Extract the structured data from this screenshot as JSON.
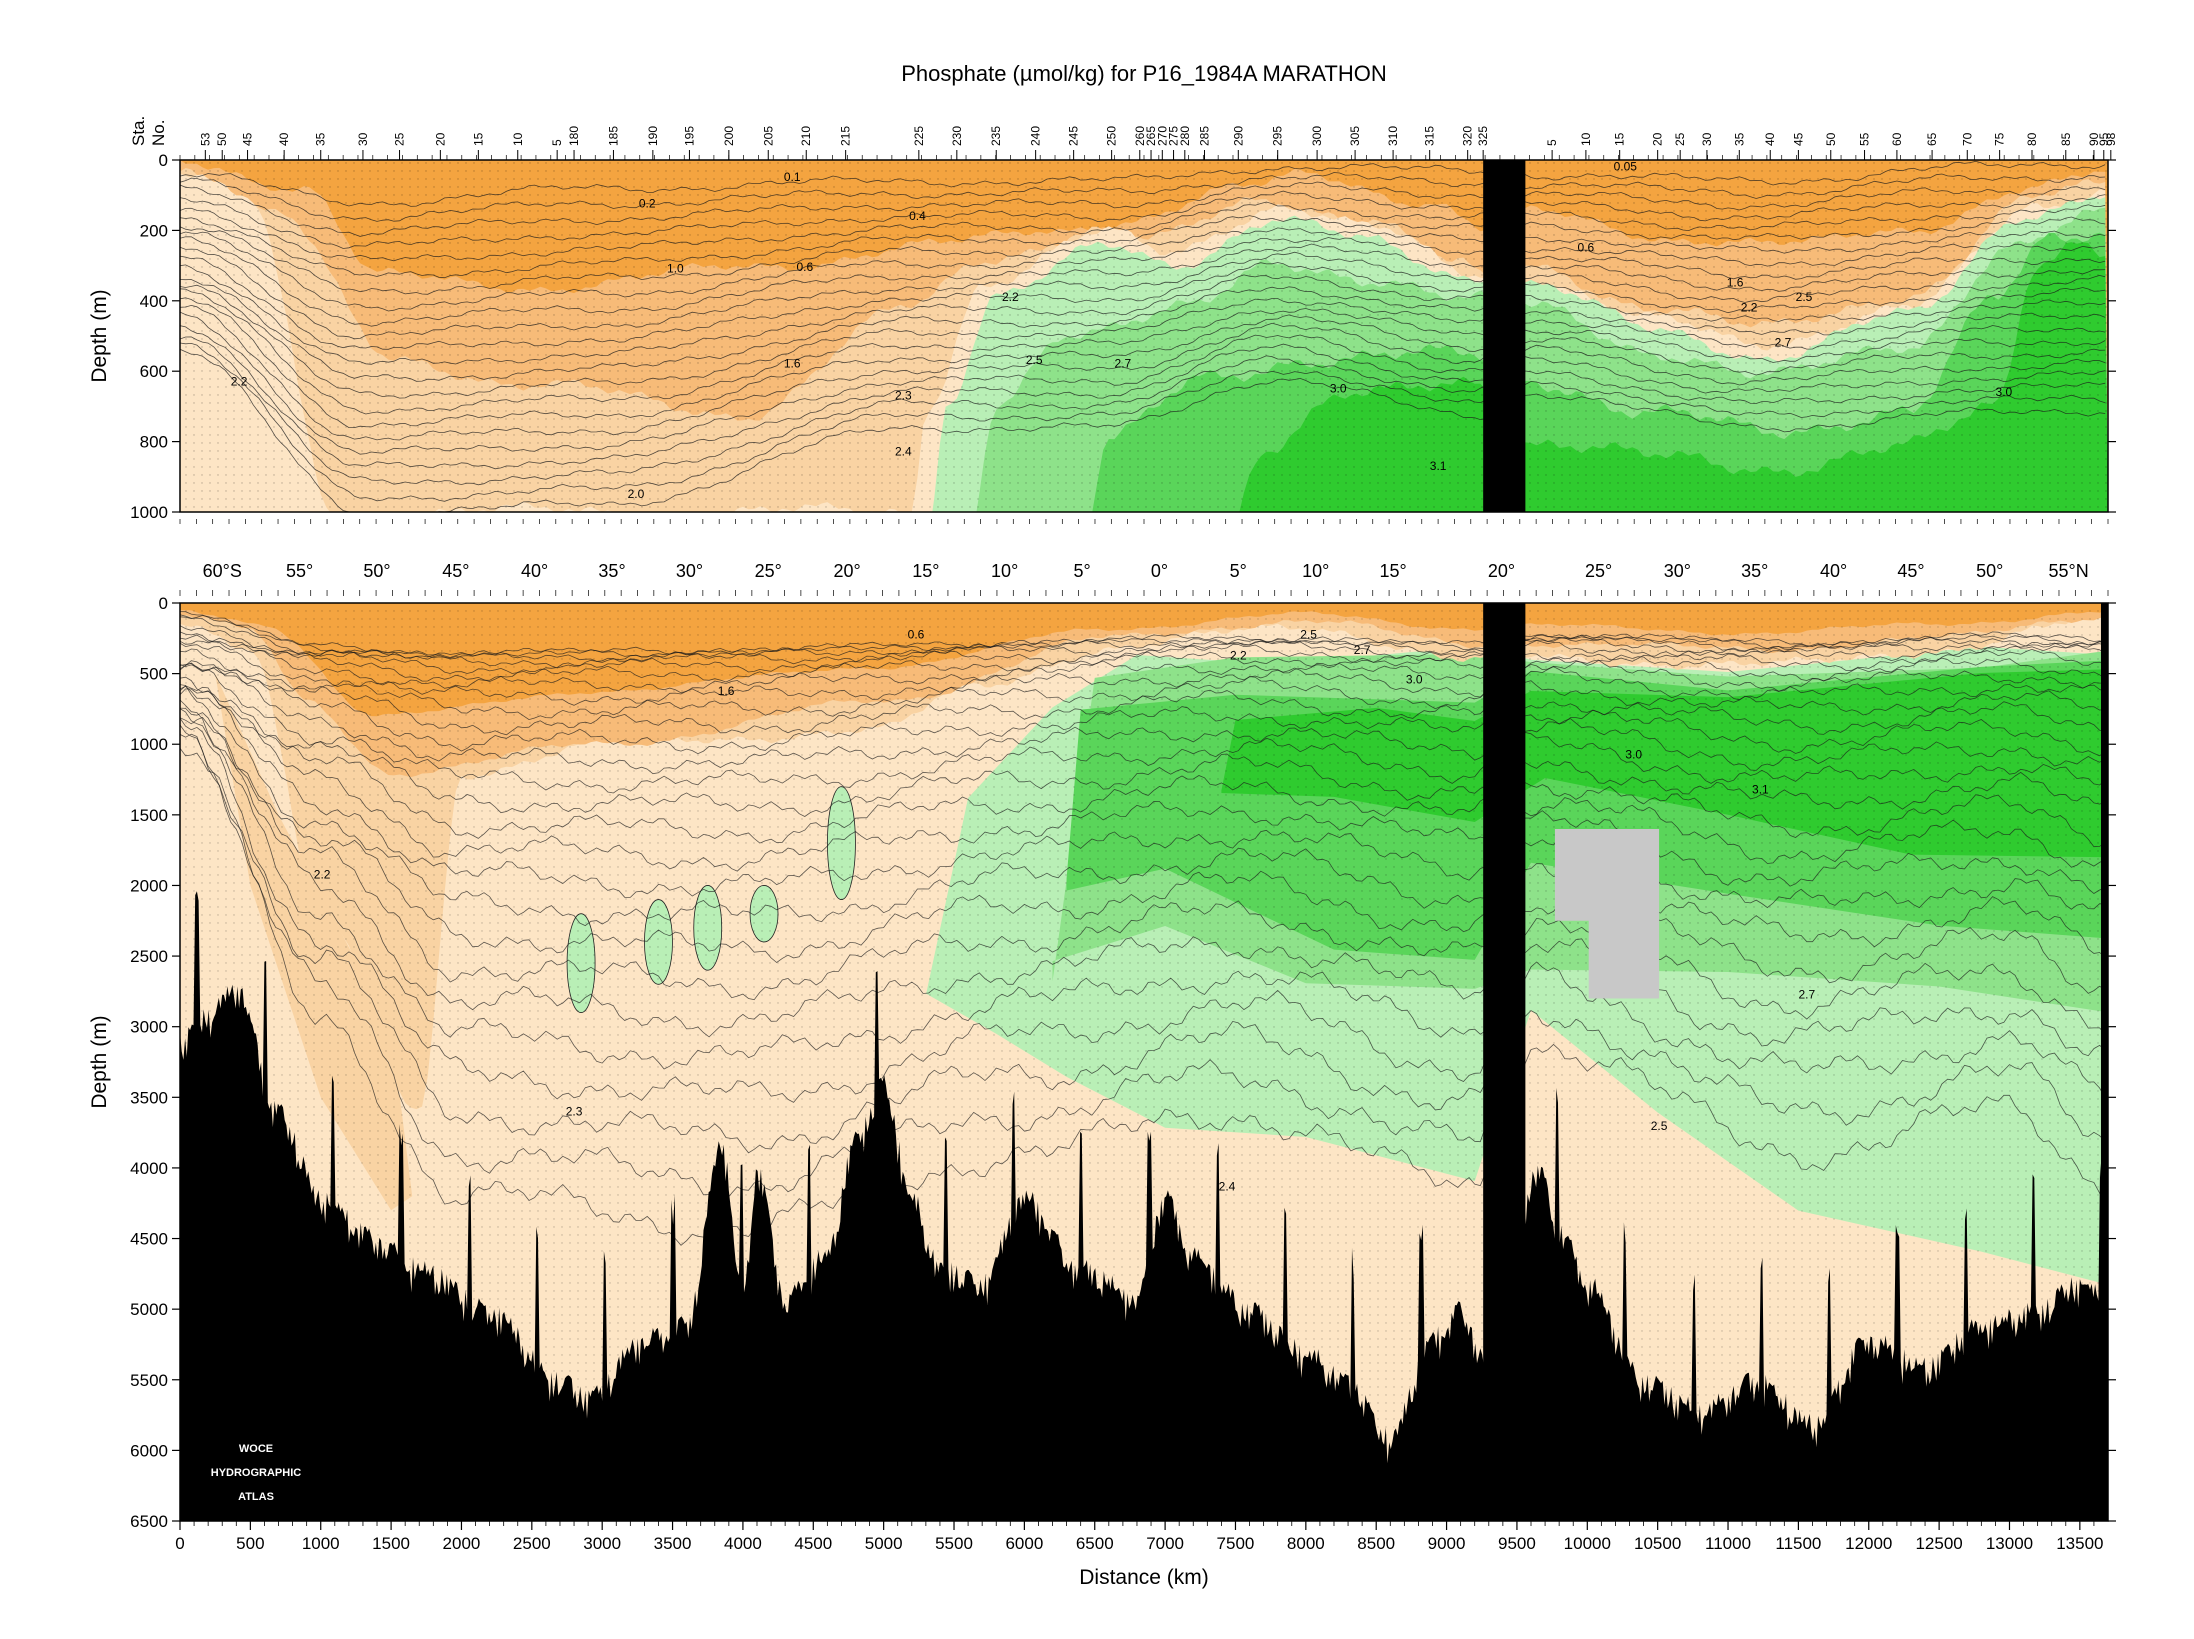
{
  "chart_data": {
    "type": "heatmap",
    "title": "Phosphate (µmol/kg) for P16_1984A MARATHON",
    "xlabel": "Distance (km)",
    "ylabel": "Depth (m)",
    "station_axis_label": [
      "Sta.",
      "No."
    ],
    "xlim": [
      0,
      13700
    ],
    "x_ticks": [
      0,
      500,
      1000,
      1500,
      2000,
      2500,
      3000,
      3500,
      4000,
      4500,
      5000,
      5500,
      6000,
      6500,
      7000,
      7500,
      8000,
      8500,
      9000,
      9500,
      10000,
      10500,
      11000,
      11500,
      12000,
      12500,
      13000,
      13500
    ],
    "x_tick_labels": [
      "0",
      "500",
      "1000",
      "1500",
      "2000",
      "2500",
      "3000",
      "3500",
      "4000",
      "4500",
      "5000",
      "5500",
      "6000",
      "6500",
      "7000",
      "7500",
      "8000",
      "8500",
      "9000",
      "9500",
      "10000",
      "10500",
      "11000",
      "11500",
      "12000",
      "12500",
      "13000",
      "13500"
    ],
    "top_panel": {
      "ylim": [
        0,
        1000
      ],
      "y_ticks": [
        0,
        200,
        400,
        600,
        800,
        1000
      ],
      "y_tick_labels": [
        "0",
        "200",
        "400",
        "600",
        "800",
        "1000"
      ]
    },
    "bottom_panel": {
      "ylim": [
        0,
        6500
      ],
      "y_ticks": [
        0,
        500,
        1000,
        1500,
        2000,
        2500,
        3000,
        3500,
        4000,
        4500,
        5000,
        5500,
        6000,
        6500
      ],
      "y_tick_labels": [
        "0",
        "500",
        "1000",
        "1500",
        "2000",
        "2500",
        "3000",
        "3500",
        "4000",
        "4500",
        "5000",
        "5500",
        "6000",
        "6500"
      ]
    },
    "stations": [
      {
        "label": "53",
        "x": 180
      },
      {
        "label": "50",
        "x": 300
      },
      {
        "label": "45",
        "x": 480
      },
      {
        "label": "40",
        "x": 740
      },
      {
        "label": "35",
        "x": 1000
      },
      {
        "label": "30",
        "x": 1300
      },
      {
        "label": "25",
        "x": 1560
      },
      {
        "label": "20",
        "x": 1850
      },
      {
        "label": "15",
        "x": 2120
      },
      {
        "label": "10",
        "x": 2400
      },
      {
        "label": "5",
        "x": 2680
      },
      {
        "label": "180",
        "x": 2800
      },
      {
        "label": "185",
        "x": 3080
      },
      {
        "label": "190",
        "x": 3360
      },
      {
        "label": "195",
        "x": 3620
      },
      {
        "label": "200",
        "x": 3900
      },
      {
        "label": "205",
        "x": 4180
      },
      {
        "label": "210",
        "x": 4450
      },
      {
        "label": "215",
        "x": 4730
      },
      {
        "label": "225",
        "x": 5250
      },
      {
        "label": "230",
        "x": 5520
      },
      {
        "label": "235",
        "x": 5800
      },
      {
        "label": "240",
        "x": 6080
      },
      {
        "label": "245",
        "x": 6350
      },
      {
        "label": "250",
        "x": 6620
      },
      {
        "label": "260",
        "x": 6820
      },
      {
        "label": "265",
        "x": 6900
      },
      {
        "label": "270",
        "x": 6980
      },
      {
        "label": "275",
        "x": 7060
      },
      {
        "label": "280",
        "x": 7140
      },
      {
        "label": "285",
        "x": 7280
      },
      {
        "label": "290",
        "x": 7520
      },
      {
        "label": "295",
        "x": 7800
      },
      {
        "label": "300",
        "x": 8080
      },
      {
        "label": "305",
        "x": 8350
      },
      {
        "label": "310",
        "x": 8620
      },
      {
        "label": "315",
        "x": 8880
      },
      {
        "label": "320",
        "x": 9150
      },
      {
        "label": "325",
        "x": 9260
      },
      {
        "label": "5",
        "x": 9750
      },
      {
        "label": "10",
        "x": 9990
      },
      {
        "label": "15",
        "x": 10230
      },
      {
        "label": "20",
        "x": 10500
      },
      {
        "label": "25",
        "x": 10660
      },
      {
        "label": "30",
        "x": 10850
      },
      {
        "label": "35",
        "x": 11080
      },
      {
        "label": "40",
        "x": 11300
      },
      {
        "label": "45",
        "x": 11500
      },
      {
        "label": "50",
        "x": 11730
      },
      {
        "label": "55",
        "x": 11970
      },
      {
        "label": "60",
        "x": 12200
      },
      {
        "label": "65",
        "x": 12450
      },
      {
        "label": "70",
        "x": 12700
      },
      {
        "label": "75",
        "x": 12930
      },
      {
        "label": "80",
        "x": 13160
      },
      {
        "label": "85",
        "x": 13400
      },
      {
        "label": "90",
        "x": 13600
      },
      {
        "label": "95",
        "x": 13670
      },
      {
        "label": "98",
        "x": 13720
      }
    ],
    "latitudes": [
      {
        "label": "60°S",
        "x": 300
      },
      {
        "label": "55°",
        "x": 850
      },
      {
        "label": "50°",
        "x": 1400
      },
      {
        "label": "45°",
        "x": 1960
      },
      {
        "label": "40°",
        "x": 2520
      },
      {
        "label": "35°",
        "x": 3070
      },
      {
        "label": "30°",
        "x": 3620
      },
      {
        "label": "25°",
        "x": 4180
      },
      {
        "label": "20°",
        "x": 4740
      },
      {
        "label": "15°",
        "x": 5300
      },
      {
        "label": "10°",
        "x": 5860
      },
      {
        "label": "5°",
        "x": 6410
      },
      {
        "label": "0°",
        "x": 6960
      },
      {
        "label": "5°",
        "x": 7520
      },
      {
        "label": "10°",
        "x": 8070
      },
      {
        "label": "15°",
        "x": 8620
      },
      {
        "label": "20°",
        "x": 9390
      },
      {
        "label": "25°",
        "x": 10080
      },
      {
        "label": "30°",
        "x": 10640
      },
      {
        "label": "35°",
        "x": 11190
      },
      {
        "label": "40°",
        "x": 11750
      },
      {
        "label": "45°",
        "x": 12300
      },
      {
        "label": "50°",
        "x": 12860
      },
      {
        "label": "55°N",
        "x": 13420
      }
    ],
    "contour_levels": [
      0.05,
      0.1,
      0.2,
      0.4,
      0.6,
      1.0,
      1.6,
      2.0,
      2.2,
      2.3,
      2.4,
      2.5,
      2.7,
      3.0,
      3.1
    ],
    "colors": {
      "orange_dark": "#f4a440",
      "orange_mid": "#f7bb78",
      "orange_light": "#f9d3a3",
      "peach": "#fde5c5",
      "green_pale": "#b9efb6",
      "green_light": "#8ee28a",
      "green_mid": "#5ad55a",
      "green_dark": "#2fcb2f",
      "bathymetry": "#000000",
      "no_data": "#c8c8c8"
    },
    "top_contour_labels": [
      {
        "text": "0.1",
        "x": 4350,
        "y": 60
      },
      {
        "text": "0.05",
        "x": 10270,
        "y": 30
      },
      {
        "text": "0.2",
        "x": 3320,
        "y": 135
      },
      {
        "text": "0.4",
        "x": 5240,
        "y": 170
      },
      {
        "text": "0.6",
        "x": 4440,
        "y": 315
      },
      {
        "text": "0.6",
        "x": 9990,
        "y": 260
      },
      {
        "text": "1.0",
        "x": 3520,
        "y": 320
      },
      {
        "text": "1.6",
        "x": 4350,
        "y": 590
      },
      {
        "text": "1.6",
        "x": 11050,
        "y": 360
      },
      {
        "text": "2.2",
        "x": 420,
        "y": 640
      },
      {
        "text": "2.2",
        "x": 5900,
        "y": 400
      },
      {
        "text": "2.2",
        "x": 11150,
        "y": 430
      },
      {
        "text": "2.3",
        "x": 5140,
        "y": 680
      },
      {
        "text": "2.4",
        "x": 5140,
        "y": 840
      },
      {
        "text": "2.5",
        "x": 6070,
        "y": 580
      },
      {
        "text": "2.5",
        "x": 11540,
        "y": 400
      },
      {
        "text": "2.7",
        "x": 6700,
        "y": 590
      },
      {
        "text": "2.7",
        "x": 11390,
        "y": 530
      },
      {
        "text": "3.0",
        "x": 8230,
        "y": 660
      },
      {
        "text": "3.0",
        "x": 12960,
        "y": 670
      },
      {
        "text": "3.1",
        "x": 8940,
        "y": 880
      },
      {
        "text": "2.0",
        "x": 3240,
        "y": 960
      }
    ],
    "bottom_contour_labels": [
      {
        "text": "0.6",
        "x": 5230,
        "y": 250
      },
      {
        "text": "1.6",
        "x": 3880,
        "y": 650
      },
      {
        "text": "2.2",
        "x": 1010,
        "y": 1950
      },
      {
        "text": "2.2",
        "x": 7520,
        "y": 400
      },
      {
        "text": "2.3",
        "x": 2800,
        "y": 3630
      },
      {
        "text": "2.4",
        "x": 7440,
        "y": 4160
      },
      {
        "text": "2.5",
        "x": 8020,
        "y": 250
      },
      {
        "text": "2.5",
        "x": 10510,
        "y": 3730
      },
      {
        "text": "2.7",
        "x": 8400,
        "y": 360
      },
      {
        "text": "2.7",
        "x": 11560,
        "y": 2800
      },
      {
        "text": "3.0",
        "x": 8770,
        "y": 570
      },
      {
        "text": "3.0",
        "x": 10330,
        "y": 1100
      },
      {
        "text": "3.1",
        "x": 11230,
        "y": 1350
      }
    ],
    "logo": [
      "WOCE",
      "HYDROGRAPHIC",
      "ATLAS"
    ]
  }
}
